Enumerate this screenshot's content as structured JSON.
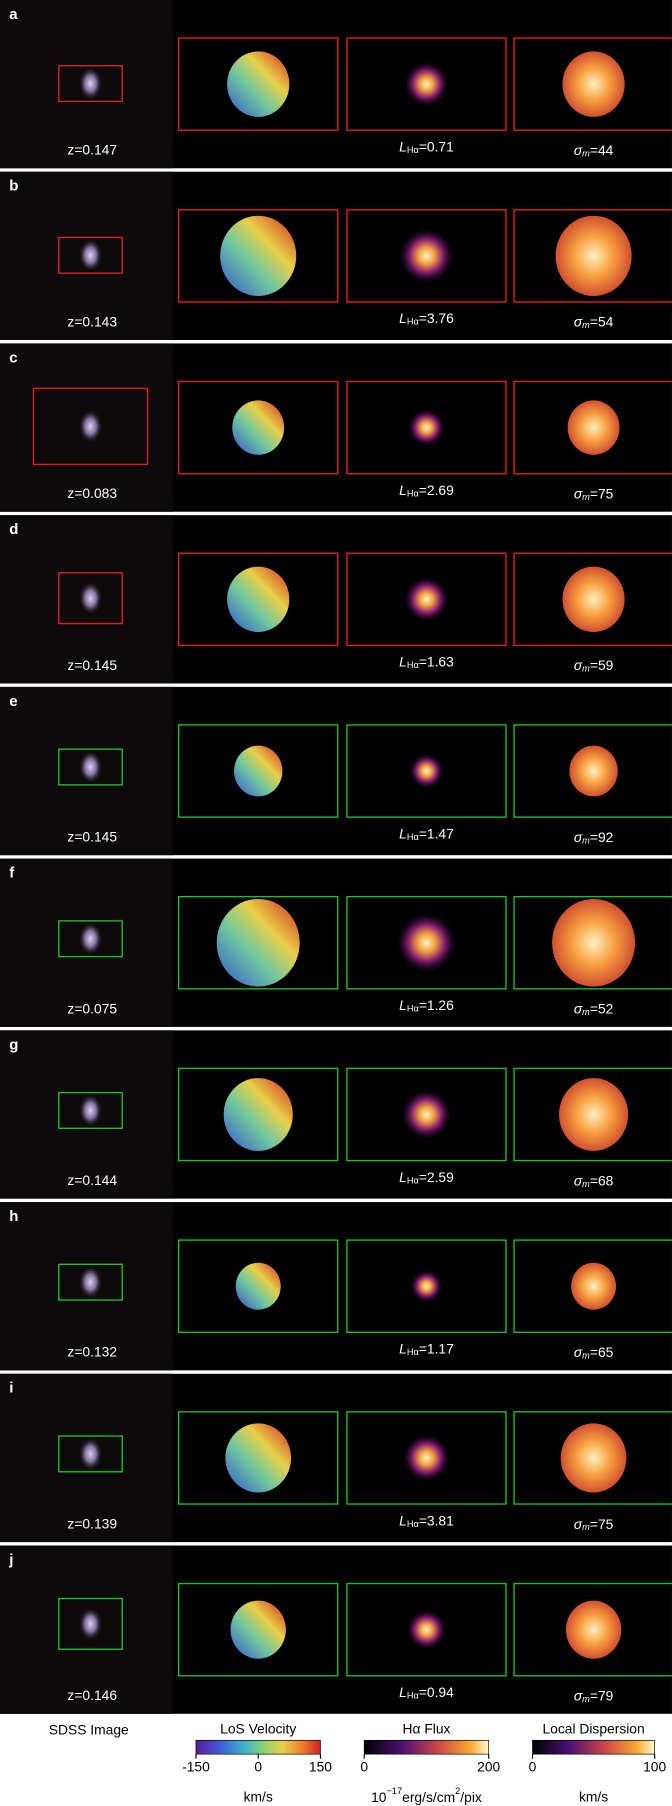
{
  "rows": [
    {
      "label": "a",
      "z": "z=0.147",
      "box_color": "#e02020",
      "lha": {
        "symbol": "L",
        "sub": "Hα",
        "text": "=0.71"
      },
      "sigma": {
        "symbol": "σ",
        "sub": "m",
        "text": "=44"
      }
    },
    {
      "label": "b",
      "z": "z=0.143",
      "box_color": "#e02020",
      "lha": {
        "symbol": "L",
        "sub": "Hα",
        "text": "=3.76"
      },
      "sigma": {
        "symbol": "σ",
        "sub": "m",
        "text": "=54"
      }
    },
    {
      "label": "c",
      "z": "z=0.083",
      "box_color": "#e02020",
      "lha": {
        "symbol": "L",
        "sub": "Hα",
        "text": "=2.69"
      },
      "sigma": {
        "symbol": "σ",
        "sub": "m",
        "text": "=75"
      }
    },
    {
      "label": "d",
      "z": "z=0.145",
      "box_color": "#e02020",
      "lha": {
        "symbol": "L",
        "sub": "Hα",
        "text": "=1.63"
      },
      "sigma": {
        "symbol": "σ",
        "sub": "m",
        "text": "=59"
      }
    },
    {
      "label": "e",
      "z": "z=0.145",
      "box_color": "#20c020",
      "lha": {
        "symbol": "L",
        "sub": "Hα",
        "text": "=1.47"
      },
      "sigma": {
        "symbol": "σ",
        "sub": "m",
        "text": "=92"
      }
    },
    {
      "label": "f",
      "z": "z=0.075",
      "box_color": "#20c020",
      "lha": {
        "symbol": "L",
        "sub": "Hα",
        "text": "=1.26"
      },
      "sigma": {
        "symbol": "σ",
        "sub": "m",
        "text": "=52"
      }
    },
    {
      "label": "g",
      "z": "z=0.144",
      "box_color": "#20c020",
      "lha": {
        "symbol": "L",
        "sub": "Hα",
        "text": "=2.59"
      },
      "sigma": {
        "symbol": "σ",
        "sub": "m",
        "text": "=68"
      }
    },
    {
      "label": "h",
      "z": "z=0.132",
      "box_color": "#20c020",
      "lha": {
        "symbol": "L",
        "sub": "Hα",
        "text": "=1.17"
      },
      "sigma": {
        "symbol": "σ",
        "sub": "m",
        "text": "=65"
      }
    },
    {
      "label": "i",
      "z": "z=0.139",
      "box_color": "#20c020",
      "lha": {
        "symbol": "L",
        "sub": "Hα",
        "text": "=3.81"
      },
      "sigma": {
        "symbol": "σ",
        "sub": "m",
        "text": "=75"
      }
    },
    {
      "label": "j",
      "z": "z=0.146",
      "box_color": "#20c020",
      "lha": {
        "symbol": "L",
        "sub": "Hα",
        "text": "=0.94"
      },
      "sigma": {
        "symbol": "σ",
        "sub": "m",
        "text": "=79"
      }
    }
  ],
  "sdss_label": "SDSS Image",
  "colorbars": [
    {
      "title": "LoS Velocity",
      "lim": [
        -150,
        150
      ],
      "ticks": [
        -150,
        0,
        150
      ],
      "unit": "km/s"
    },
    {
      "title": "Hα Flux",
      "lim": [
        0,
        200
      ],
      "ticks": [
        0,
        200
      ],
      "unit": {
        "base": "10",
        "exp": "−17",
        "mid": "erg/s/cm",
        "exp2": "2",
        "tail": "/pix"
      }
    },
    {
      "title": "Local Dispersion",
      "lim": [
        0,
        100
      ],
      "ticks": [
        0,
        100
      ],
      "unit": "km/s"
    }
  ]
}
